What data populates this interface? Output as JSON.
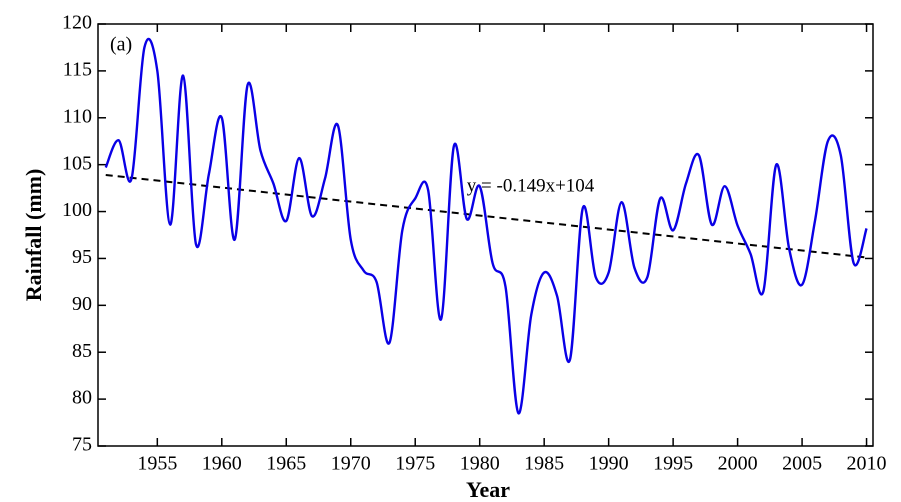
{
  "chart_data": {
    "type": "line",
    "panel_label": "(a)",
    "xlabel": "Year",
    "ylabel": "Rainfall (mm)",
    "annotation": "y = -0.149x+104",
    "x": [
      1951,
      1952,
      1953,
      1954,
      1955,
      1956,
      1957,
      1958,
      1959,
      1960,
      1961,
      1962,
      1963,
      1964,
      1965,
      1966,
      1967,
      1968,
      1969,
      1970,
      1971,
      1972,
      1973,
      1974,
      1975,
      1976,
      1977,
      1978,
      1979,
      1980,
      1981,
      1982,
      1983,
      1984,
      1985,
      1986,
      1987,
      1988,
      1989,
      1990,
      1991,
      1992,
      1993,
      1994,
      1995,
      1996,
      1997,
      1998,
      1999,
      2000,
      2001,
      2002,
      2003,
      2004,
      2005,
      2006,
      2007,
      2008,
      2009,
      2010
    ],
    "series": [
      {
        "color": "#0a00e6",
        "values": [
          104.7,
          107.6,
          103.5,
          117.5,
          115,
          98.6,
          114.5,
          96.5,
          104,
          110,
          97,
          113.5,
          106.5,
          103,
          99,
          105.7,
          99.5,
          103.5,
          109.2,
          97,
          93.7,
          92.5,
          86,
          98,
          101.4,
          102.3,
          88.5,
          107,
          99.2,
          102.7,
          94.5,
          92,
          78.5,
          89,
          93.5,
          91,
          84.2,
          100.4,
          93,
          93.5,
          101,
          94,
          93,
          101.4,
          98,
          103,
          106,
          98.6,
          102.7,
          98.5,
          95.5,
          91.5,
          105,
          96,
          92.2,
          99,
          107.5,
          106,
          94.5,
          98.2
        ]
      }
    ],
    "trend": {
      "color": "#000000",
      "x": [
        1951,
        2010
      ],
      "values": [
        103.9,
        95.1
      ]
    },
    "xlim": [
      1950.4,
      2010.5
    ],
    "ylim": [
      75,
      120
    ],
    "xticks": [
      1955,
      1960,
      1965,
      1970,
      1975,
      1980,
      1985,
      1990,
      1995,
      2000,
      2005,
      2010
    ],
    "yticks": [
      75,
      80,
      85,
      90,
      95,
      100,
      105,
      110,
      115,
      120
    ]
  }
}
